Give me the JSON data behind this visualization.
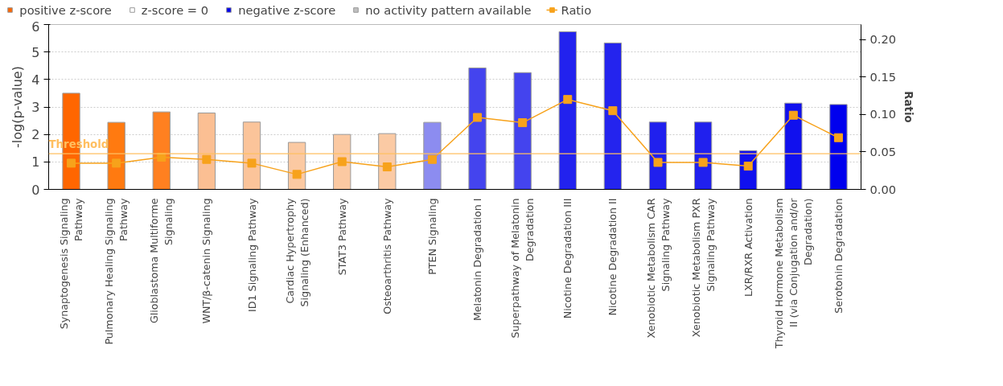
{
  "chart_data": {
    "type": "bar",
    "categories": [
      "Synaptogenesis Signaling Pathway",
      "Pulmonary Healing Signaling Pathway",
      "Glioblastoma Multiforme Signaling",
      "WNT/β-catenin Signaling",
      "ID1 Signaling Pathway",
      "Cardiac Hypertrophy Signaling (Enhanced)",
      "STAT3 Pathway",
      "Osteoarthritis Pathway",
      "PTEN Signaling",
      "Melatonin Degradation I",
      "Superpathway of Melatonin Degradation",
      "Nicotine Degradation III",
      "Nicotine Degradation II",
      "Xenobiotic Metabolism CAR Signaling Pathway",
      "Xenobiotic Metabolism PXR Signaling Pathway",
      "LXR/RXR Activation",
      "Thyroid Hormone Metabolism II (via Conjugation and/or Degradation)",
      "Serotonin Degradation"
    ],
    "series": [
      {
        "name": "positive z-score",
        "color": "#ff6600",
        "colors": [
          "#ff6600",
          "#ff7a10",
          "#ff8020",
          "#fbbf93",
          "#fbc49a",
          "#fbc9a2",
          "#fbc9a2",
          "#fbcaa4",
          null,
          null,
          null,
          null,
          null,
          null,
          null,
          null,
          null,
          null
        ],
        "values": [
          3.5,
          2.44,
          2.82,
          2.78,
          2.45,
          1.71,
          2.0,
          2.03,
          null,
          null,
          null,
          null,
          null,
          null,
          null,
          null,
          null,
          null
        ]
      },
      {
        "name": "z-score = 0",
        "color": "#ffffff",
        "values": [
          null,
          null,
          null,
          null,
          null,
          null,
          null,
          null,
          null,
          null,
          null,
          null,
          null,
          null,
          null,
          null,
          null,
          null
        ]
      },
      {
        "name": "negative z-score",
        "color": "#0000ee",
        "colors": [
          null,
          null,
          null,
          null,
          null,
          null,
          null,
          null,
          "#8c8cf0",
          "#4444ee",
          "#4444ee",
          "#2222ee",
          "#2424ee",
          "#2020ee",
          "#2020ee",
          "#1010ee",
          "#1010ee",
          "#0000ee"
        ],
        "values": [
          null,
          null,
          null,
          null,
          null,
          null,
          null,
          null,
          2.44,
          4.42,
          4.25,
          5.74,
          5.33,
          2.45,
          2.45,
          1.41,
          3.14,
          3.09
        ]
      },
      {
        "name": "no activity pattern available",
        "color": "#c0c0c0",
        "values": [
          null,
          null,
          null,
          null,
          null,
          null,
          null,
          null,
          null,
          null,
          null,
          null,
          null,
          null,
          null,
          null,
          null,
          null
        ]
      },
      {
        "name": "Ratio",
        "type": "line",
        "axis": "y2",
        "color": "#f7a21b",
        "values": [
          0.035,
          0.035,
          0.043,
          0.04,
          0.035,
          0.02,
          0.037,
          0.03,
          0.04,
          0.096,
          0.089,
          0.12,
          0.105,
          0.036,
          0.036,
          0.031,
          0.099,
          0.069
        ]
      }
    ],
    "ylabel": "-log(p-value)",
    "y2label": "Ratio",
    "ylim": [
      0,
      6
    ],
    "yticks": [
      0,
      1,
      2,
      3,
      4,
      5,
      6
    ],
    "y2lim": [
      0,
      0.22
    ],
    "y2ticks": [
      {
        "value": 0,
        "label": "0.00"
      },
      {
        "value": 0.05,
        "label": "0.05"
      },
      {
        "value": 0.1,
        "label": "0.10"
      },
      {
        "value": 0.15,
        "label": "0.15"
      },
      {
        "value": 0.2,
        "label": "0.20"
      }
    ],
    "ref_lines": [
      {
        "axis": "y",
        "value": 1.3,
        "label": "Threshold",
        "color": "#ffbf60"
      }
    ],
    "grid": "y",
    "legend": "top left",
    "marker": "square",
    "line_style": "solid"
  }
}
